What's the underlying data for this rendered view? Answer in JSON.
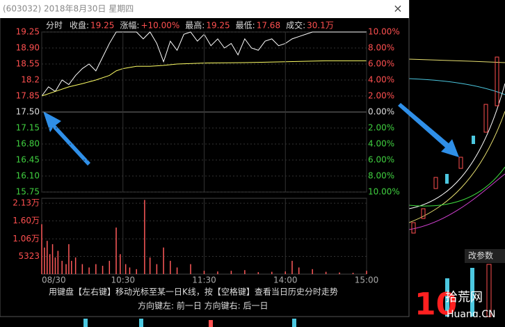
{
  "window": {
    "title": "(603032) 2018年8月30日 星期四",
    "close": "×"
  },
  "info": {
    "mode": "分时",
    "items": [
      {
        "label": "收盘:",
        "value": "19.25"
      },
      {
        "label": "涨幅:",
        "value": "+10.00%"
      },
      {
        "label": "最高:",
        "value": "19.25"
      },
      {
        "label": "最低:",
        "value": "17.68"
      },
      {
        "label": "成交:",
        "value": "30.1万"
      }
    ]
  },
  "chart_data": [
    {
      "type": "line",
      "ylim": [
        15.75,
        19.25
      ],
      "yticks": [
        19.25,
        {
          "value": 18.9,
          "label": "18.90"
        },
        18.55,
        18.2,
        17.85,
        {
          "value": 17.5,
          "label": "17.50"
        },
        17.15,
        {
          "value": 16.8,
          "label": "16.80"
        },
        16.45,
        {
          "value": 16.1,
          "label": "16.10"
        },
        15.75
      ],
      "y2lim": [
        -10,
        10
      ],
      "y2ticks": [
        {
          "value": 10,
          "label": "10.00%"
        },
        {
          "value": 8,
          "label": "8.00%"
        },
        {
          "value": 6,
          "label": "6.00%"
        },
        {
          "value": 4,
          "label": "4.00%"
        },
        {
          "value": 2,
          "label": "2.00%"
        },
        {
          "value": 0,
          "label": "0.00%"
        },
        {
          "value": -2,
          "label": "2.00%"
        },
        {
          "value": -4,
          "label": "4.00%"
        },
        {
          "value": -6,
          "label": "6.00%"
        },
        {
          "value": -8,
          "label": "8.00%"
        },
        {
          "value": -10,
          "label": "10.00%"
        }
      ],
      "xlim": [
        0,
        240
      ],
      "series": [
        {
          "color": "#ffffff",
          "x": [
            0,
            5,
            10,
            15,
            20,
            25,
            30,
            35,
            40,
            45,
            50,
            55,
            60,
            65,
            70,
            75,
            80,
            85,
            90,
            95,
            100,
            105,
            110,
            115,
            120,
            125,
            130,
            135,
            140,
            145,
            150,
            155,
            160,
            165,
            170,
            175,
            180,
            185,
            190,
            195,
            200,
            205,
            210,
            215,
            220,
            225,
            230,
            235,
            240
          ],
          "values": [
            17.85,
            18.05,
            17.95,
            18.2,
            18.1,
            18.3,
            18.45,
            18.55,
            18.4,
            18.7,
            19.0,
            19.25,
            19.25,
            19.25,
            19.25,
            19.1,
            19.25,
            19.0,
            18.6,
            19.05,
            18.85,
            19.2,
            19.25,
            19.05,
            19.2,
            18.95,
            19.1,
            18.9,
            19.0,
            18.75,
            19.1,
            18.9,
            18.85,
            19.05,
            19.1,
            18.95,
            19.0,
            19.1,
            19.15,
            19.2,
            19.25,
            19.25,
            19.25,
            19.25,
            19.25,
            19.25,
            19.25,
            19.25,
            19.25
          ]
        },
        {
          "color": "#ffff66",
          "x": [
            0,
            10,
            20,
            30,
            40,
            50,
            55,
            60,
            70,
            80,
            90,
            100,
            120,
            150,
            180,
            210,
            240
          ],
          "values": [
            17.85,
            17.95,
            18.05,
            18.12,
            18.2,
            18.3,
            18.4,
            18.45,
            18.5,
            18.5,
            18.52,
            18.55,
            18.57,
            18.58,
            18.6,
            18.62,
            18.62
          ]
        }
      ]
    },
    {
      "type": "bar",
      "color": "#ff5a5a",
      "ylim": [
        0,
        22800
      ],
      "yticks": [
        {
          "value": 21300,
          "label": "2.13万"
        },
        {
          "value": 16000,
          "label": "1.60万"
        },
        {
          "value": 10600,
          "label": "1.06万"
        },
        5323
      ],
      "xlim": [
        0,
        240
      ],
      "xticks": [
        {
          "value": 0,
          "label": "08/30"
        },
        {
          "value": 60,
          "label": "10:30"
        },
        {
          "value": 120,
          "label": "11:30"
        },
        {
          "value": 180,
          "label": "14:00"
        },
        {
          "value": 240,
          "label": "15:00"
        }
      ],
      "x": [
        0,
        2,
        4,
        6,
        8,
        10,
        12,
        15,
        18,
        20,
        22,
        25,
        30,
        35,
        40,
        45,
        50,
        55,
        58,
        62,
        65,
        70,
        76,
        80,
        85,
        90,
        95,
        100,
        110,
        120,
        130,
        140,
        150,
        160,
        170,
        180,
        185,
        190,
        200,
        210,
        220,
        230,
        240
      ],
      "values": [
        15000,
        8000,
        10000,
        6000,
        9000,
        5000,
        7000,
        4000,
        3000,
        9000,
        4000,
        5000,
        3000,
        2000,
        3000,
        2500,
        4000,
        14000,
        6000,
        3000,
        2000,
        1500,
        22300,
        5000,
        3000,
        8000,
        4000,
        2000,
        3000,
        1000,
        800,
        1000,
        1200,
        600,
        700,
        800,
        4000,
        2000,
        1500,
        700,
        500,
        400,
        1000
      ]
    }
  ],
  "footer": {
    "line1": "用键盘【左右键】移动光标至某一日K线，按【空格键】查看当日历史分时走势",
    "line2": "方向键左: 前一日    方向键右: 后一日"
  },
  "background": {
    "button": "改参数",
    "watermark_cn": "拾荒网",
    "watermark_en": "Huang.CN"
  }
}
